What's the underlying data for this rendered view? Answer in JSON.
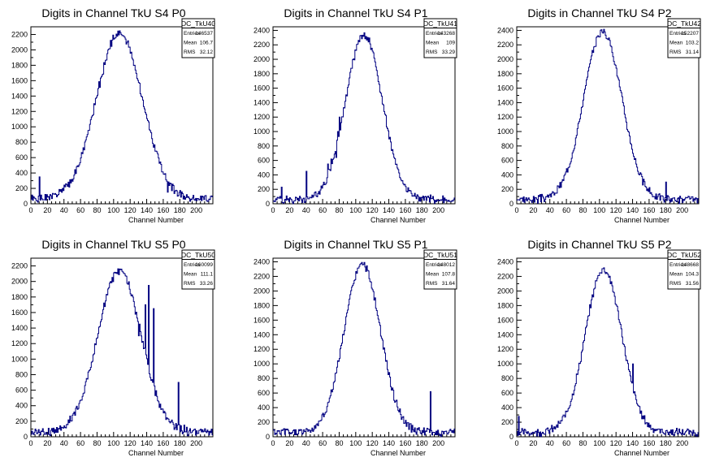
{
  "chart_data": [
    {
      "type": "histogram",
      "title": "Digits in Channel TkU S4 P0",
      "xlabel": "Channel Number",
      "ylabel": "",
      "xlim": [
        0,
        220
      ],
      "ylim": [
        0,
        2300
      ],
      "xticks": [
        0,
        20,
        40,
        60,
        80,
        100,
        120,
        140,
        160,
        180,
        200
      ],
      "yticks": [
        200,
        400,
        600,
        800,
        1000,
        1200,
        1400,
        1600,
        1800,
        2000,
        2200
      ],
      "stats": {
        "name": "DC_TkU40",
        "entries": "146537",
        "mean": "106.7",
        "rms": "32.12"
      },
      "profile": {
        "center": 107,
        "sigma": 28,
        "peak": 2150
      },
      "spikes": [
        [
          10,
          350
        ],
        [
          165,
          150
        ]
      ],
      "noise_seed": 1
    },
    {
      "type": "histogram",
      "title": "Digits in Channel TkU S4 P1",
      "xlabel": "Channel Number",
      "ylabel": "",
      "xlim": [
        0,
        220
      ],
      "ylim": [
        0,
        2450
      ],
      "xticks": [
        0,
        20,
        40,
        60,
        80,
        100,
        120,
        140,
        160,
        180,
        200
      ],
      "yticks": [
        200,
        400,
        600,
        800,
        1000,
        1200,
        1400,
        1600,
        1800,
        2000,
        2200,
        2400
      ],
      "stats": {
        "name": "DC_TkU41",
        "entries": "143268",
        "mean": "109",
        "rms": "33.29"
      },
      "profile": {
        "center": 110,
        "sigma": 22,
        "peak": 2280
      },
      "spikes": [
        [
          10,
          230
        ],
        [
          40,
          450
        ],
        [
          60,
          260
        ],
        [
          66,
          550
        ],
        [
          70,
          620
        ],
        [
          76,
          640
        ],
        [
          78,
          1000
        ],
        [
          80,
          1200
        ]
      ],
      "noise_seed": 2
    },
    {
      "type": "histogram",
      "title": "Digits in Channel TkU S4 P2",
      "xlabel": "Channel Number",
      "ylabel": "",
      "xlim": [
        0,
        220
      ],
      "ylim": [
        0,
        2450
      ],
      "xticks": [
        0,
        20,
        40,
        60,
        80,
        100,
        120,
        140,
        160,
        180,
        200
      ],
      "yticks": [
        200,
        400,
        600,
        800,
        1000,
        1200,
        1400,
        1600,
        1800,
        2000,
        2200,
        2400
      ],
      "stats": {
        "name": "DC_TkU42",
        "entries": "152207",
        "mean": "103.2",
        "rms": "31.14"
      },
      "profile": {
        "center": 104,
        "sigma": 23,
        "peak": 2330
      },
      "spikes": [
        [
          180,
          300
        ]
      ],
      "noise_seed": 3
    },
    {
      "type": "histogram",
      "title": "Digits in Channel TkU S5 P0",
      "xlabel": "Channel Number",
      "ylabel": "",
      "xlim": [
        0,
        220
      ],
      "ylim": [
        0,
        2300
      ],
      "xticks": [
        0,
        20,
        40,
        60,
        80,
        100,
        120,
        140,
        160,
        180,
        200
      ],
      "yticks": [
        200,
        400,
        600,
        800,
        1000,
        1200,
        1400,
        1600,
        1800,
        2000,
        2200
      ],
      "stats": {
        "name": "DC_TkU50",
        "entries": "160099",
        "mean": "111.1",
        "rms": "33.26"
      },
      "profile": {
        "center": 107,
        "sigma": 26,
        "peak": 2080
      },
      "spikes": [
        [
          130,
          1300
        ],
        [
          138,
          1700
        ],
        [
          142,
          1950
        ],
        [
          148,
          1650
        ],
        [
          178,
          700
        ],
        [
          185,
          150
        ]
      ],
      "noise_seed": 4
    },
    {
      "type": "histogram",
      "title": "Digits in Channel TkU S5 P1",
      "xlabel": "Channel Number",
      "ylabel": "",
      "xlim": [
        0,
        220
      ],
      "ylim": [
        0,
        2450
      ],
      "xticks": [
        0,
        20,
        40,
        60,
        80,
        100,
        120,
        140,
        160,
        180,
        200
      ],
      "yticks": [
        200,
        400,
        600,
        800,
        1000,
        1200,
        1400,
        1600,
        1800,
        2000,
        2200,
        2400
      ],
      "stats": {
        "name": "DC_TkU51",
        "entries": "148012",
        "mean": "107.8",
        "rms": "31.64"
      },
      "profile": {
        "center": 108,
        "sigma": 22,
        "peak": 2300
      },
      "spikes": [
        [
          190,
          620
        ]
      ],
      "noise_seed": 5
    },
    {
      "type": "histogram",
      "title": "Digits in Channel TkU S5 P2",
      "xlabel": "Channel Number",
      "ylabel": "",
      "xlim": [
        0,
        220
      ],
      "ylim": [
        0,
        2450
      ],
      "xticks": [
        0,
        20,
        40,
        60,
        80,
        100,
        120,
        140,
        160,
        180,
        200
      ],
      "yticks": [
        200,
        400,
        600,
        800,
        1000,
        1200,
        1400,
        1600,
        1800,
        2000,
        2200,
        2400
      ],
      "stats": {
        "name": "DC_TkU52",
        "entries": "148668",
        "mean": "104.3",
        "rms": "31.56"
      },
      "profile": {
        "center": 105,
        "sigma": 22,
        "peak": 2240
      },
      "spikes": [
        [
          140,
          1000
        ],
        [
          2,
          280
        ]
      ],
      "noise_seed": 6
    }
  ],
  "labels": {
    "entries": "Entries",
    "mean": "Mean",
    "rms": "RMS"
  },
  "colors": {
    "line": "#000080",
    "frame": "#000000"
  }
}
